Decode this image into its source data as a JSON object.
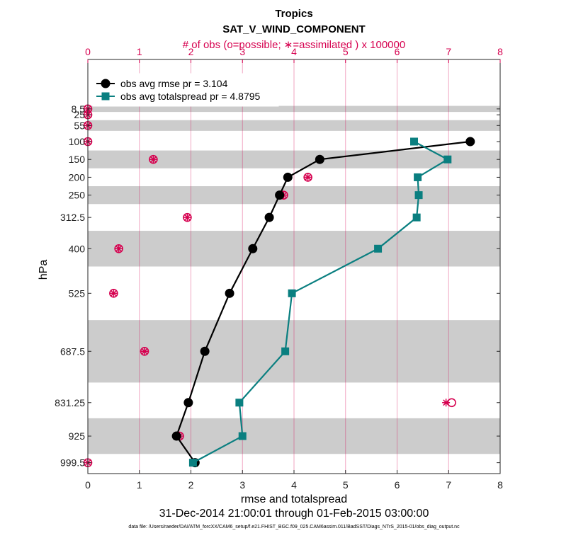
{
  "chart_data": {
    "type": "line",
    "title": "Tropics",
    "subtitle": "SAT_V_WIND_COMPONENT",
    "top_axis_label": "# of obs (o=possible; ∗=assimilated ) x 100000",
    "xlabel": "rmse and totalspread",
    "ylabel": "hPa",
    "date_range": "31-Dec-2014 21:00:01 through 01-Feb-2015 03:00:00",
    "file_note": "data file: /Users/raeder/DAI/ATM_forcXX/CAM6_setup/f.e21.FHIST_BGC.f09_025.CAM6assim.011/BadSST/Diags_NTrS_2015-01/obs_diag_output.nc",
    "xlim": [
      0,
      8
    ],
    "x_ticks": [
      0,
      1,
      2,
      3,
      4,
      5,
      6,
      7,
      8
    ],
    "x_tick_labels": [
      "0",
      "1",
      "2",
      "3",
      "4",
      "5",
      "6",
      "7",
      "8"
    ],
    "top_xlim": [
      0,
      8
    ],
    "top_ticks": [
      0,
      1,
      2,
      3,
      4,
      5,
      6,
      7,
      8
    ],
    "top_tick_labels": [
      "0",
      "1",
      "2",
      "3",
      "4",
      "5",
      "6",
      "7",
      "8"
    ],
    "y_levels": [
      8.5,
      25,
      55,
      100,
      150,
      200,
      250,
      312.5,
      400,
      525,
      687.5,
      831.25,
      925,
      999.5
    ],
    "y_tick_labels": [
      "8.5",
      "25",
      "55",
      "100",
      "150",
      "200",
      "250",
      "312.5",
      "400",
      "525",
      "687.5",
      "831.25",
      "925",
      "999.5"
    ],
    "ylim": [
      -130,
      1030
    ],
    "shaded_bands": [
      [
        0,
        17
      ],
      [
        40,
        70
      ],
      [
        125,
        175
      ],
      [
        225,
        275
      ],
      [
        350,
        450
      ],
      [
        600,
        775
      ],
      [
        875,
        975
      ]
    ],
    "series": [
      {
        "name": "obs avg rmse pr = 3.104",
        "color": "#000000",
        "marker": "circle",
        "x": [
          7.42,
          4.5,
          3.88,
          3.72,
          3.52,
          3.2,
          2.75,
          2.27,
          1.95,
          1.72,
          2.08
        ],
        "y": [
          100,
          150,
          200,
          250,
          312.5,
          400,
          525,
          687.5,
          831.25,
          925,
          999.5
        ]
      },
      {
        "name": "obs avg totalspread pr = 4.8795",
        "color": "#0a7f80",
        "marker": "square",
        "x": [
          6.33,
          6.98,
          6.4,
          6.42,
          6.38,
          5.63,
          3.96,
          3.83,
          2.94,
          3.0,
          2.04
        ],
        "y": [
          100,
          150,
          200,
          250,
          312.5,
          400,
          525,
          687.5,
          831.25,
          925,
          999.5
        ]
      }
    ],
    "obs_counts": {
      "levels": [
        8.5,
        25,
        55,
        100,
        150,
        200,
        250,
        312.5,
        400,
        525,
        687.5,
        831.25,
        925,
        999.5
      ],
      "possible": [
        0.0,
        0.0,
        0.0,
        0.0,
        1.27,
        4.27,
        3.8,
        1.93,
        0.6,
        0.5,
        1.1,
        7.06,
        1.78,
        0.0
      ],
      "assimilated": [
        0.0,
        0.0,
        0.0,
        0.0,
        1.27,
        4.27,
        3.8,
        1.93,
        0.6,
        0.5,
        1.1,
        6.95,
        1.78,
        0.0
      ],
      "color": "#d6004f"
    },
    "legend_position": "top-left"
  }
}
